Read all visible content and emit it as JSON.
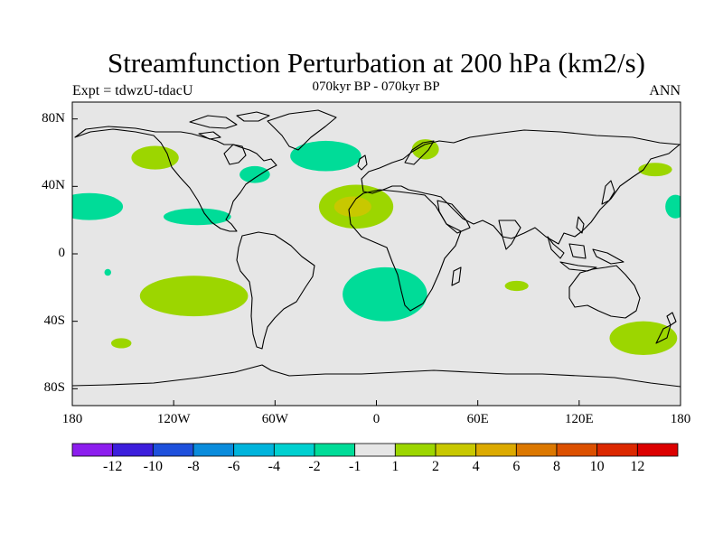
{
  "header": {
    "title": "Streamfunction Perturbation at 200 hPa (km2/s)",
    "subtitle": "070kyr BP - 070kyr BP",
    "left_label": "Expt = tdwzU-tdacU",
    "right_label": "ANN"
  },
  "map": {
    "projection": "cylindrical equidistant",
    "lon_range": [
      -180,
      180
    ],
    "lat_range": [
      -90,
      90
    ],
    "background": "#e6e6e6",
    "lat_ticks": [
      {
        "value": 80,
        "label": "80N"
      },
      {
        "value": 40,
        "label": "40N"
      },
      {
        "value": 0,
        "label": "0"
      },
      {
        "value": -40,
        "label": "40S"
      },
      {
        "value": -80,
        "label": "80S"
      }
    ],
    "lon_ticks": [
      {
        "value": -180,
        "label": "180"
      },
      {
        "value": -120,
        "label": "120W"
      },
      {
        "value": -60,
        "label": "60W"
      },
      {
        "value": 0,
        "label": "0"
      },
      {
        "value": 60,
        "label": "60E"
      },
      {
        "value": 120,
        "label": "120E"
      },
      {
        "value": 180,
        "label": "180"
      }
    ],
    "features": [
      {
        "name": "n-pacific-positive",
        "lon": -131,
        "lat": 57,
        "rlon": 14,
        "rlat": 7,
        "color": "#9cd600"
      },
      {
        "name": "n-america-negative",
        "lon": -72,
        "lat": 47,
        "rlon": 9,
        "rlat": 5,
        "color": "#00dc98"
      },
      {
        "name": "n-atlantic-negative",
        "lon": -30,
        "lat": 58,
        "rlon": 21,
        "rlat": 9,
        "color": "#00dc98"
      },
      {
        "name": "scandinavia-positive",
        "lon": 29,
        "lat": 62,
        "rlon": 8,
        "rlat": 6,
        "color": "#9cd600"
      },
      {
        "name": "n-pacific-east-negative",
        "lon": -170,
        "lat": 28,
        "rlon": 20,
        "rlat": 8,
        "color": "#00dc98"
      },
      {
        "name": "c-america-negative",
        "lon": -106,
        "lat": 22,
        "rlon": 20,
        "rlat": 5,
        "color": "#00dc98"
      },
      {
        "name": "n-africa-positive",
        "lon": -12,
        "lat": 28,
        "rlon": 22,
        "rlat": 13,
        "color": "#9cd600"
      },
      {
        "name": "n-africa-positive-core",
        "lon": -14,
        "lat": 28,
        "rlon": 11,
        "rlat": 6,
        "color": "#c8c800"
      },
      {
        "name": "w-pacific-positive",
        "lon": 165,
        "lat": 50,
        "rlon": 10,
        "rlat": 4,
        "color": "#9cd600"
      },
      {
        "name": "w-pacific-negative",
        "lon": 177,
        "lat": 28,
        "rlon": 6,
        "rlat": 7,
        "color": "#00dc98"
      },
      {
        "name": "se-pacific-positive",
        "lon": -108,
        "lat": -25,
        "rlon": 32,
        "rlat": 12,
        "color": "#9cd600"
      },
      {
        "name": "s-atlantic-negative",
        "lon": 5,
        "lat": -24,
        "rlon": 25,
        "rlat": 16,
        "color": "#00dc98"
      },
      {
        "name": "s-indian-positive",
        "lon": 83,
        "lat": -19,
        "rlon": 7,
        "rlat": 3,
        "color": "#9cd600"
      },
      {
        "name": "s-pacific-positive-small",
        "lon": -151,
        "lat": -53,
        "rlon": 6,
        "rlat": 3,
        "color": "#9cd600"
      },
      {
        "name": "tasman-positive",
        "lon": 158,
        "lat": -50,
        "rlon": 20,
        "rlat": 10,
        "color": "#9cd600"
      },
      {
        "name": "s-pacific-negative-dot",
        "lon": -159,
        "lat": -11,
        "rlon": 2,
        "rlat": 2,
        "color": "#00dc98"
      }
    ]
  },
  "colorbar": {
    "colors": [
      "#8c1eee",
      "#3c1edc",
      "#1e50dc",
      "#0a8cdc",
      "#00b4dc",
      "#00d0d0",
      "#00dc98",
      "#e6e6e6",
      "#9cd600",
      "#c8c800",
      "#dcaa00",
      "#dc7800",
      "#dc5000",
      "#dc2800",
      "#dc0000"
    ],
    "labels": [
      "-12",
      "-10",
      "-8",
      "-6",
      "-4",
      "-2",
      "-1",
      "1",
      "2",
      "4",
      "6",
      "8",
      "10",
      "12"
    ]
  }
}
